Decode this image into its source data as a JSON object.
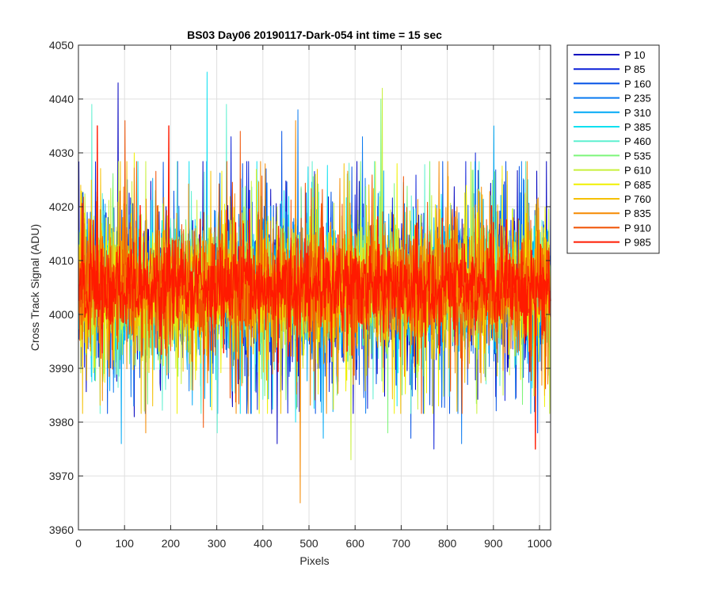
{
  "chart_data": {
    "type": "line",
    "title": "BS03 Day06 20190117-Dark-054 int time = 15 sec",
    "xlabel": "Pixels",
    "ylabel": "Cross Track Signal (ADU)",
    "xlim": [
      0,
      1024
    ],
    "ylim": [
      3960,
      4050
    ],
    "xticks": [
      0,
      100,
      200,
      300,
      400,
      500,
      600,
      700,
      800,
      900,
      1000
    ],
    "yticks": [
      3960,
      3970,
      3980,
      3990,
      4000,
      4010,
      4020,
      4030,
      4040,
      4050
    ],
    "grid": true,
    "legend_position": "outside-top-right",
    "n_points_per_series": 1024,
    "series": [
      {
        "name": "P 10",
        "color": "#0000bf",
        "mean": 4005,
        "spread": 9,
        "extremes": [
          [
            85,
            4043
          ],
          [
            120,
            3981
          ],
          [
            430,
            3976
          ]
        ]
      },
      {
        "name": "P 85",
        "color": "#0a1fd8",
        "mean": 4005,
        "spread": 9,
        "extremes": [
          [
            330,
            4033
          ],
          [
            770,
            3975
          ],
          [
            860,
            4030
          ]
        ]
      },
      {
        "name": "P 160",
        "color": "#0050e6",
        "mean": 4005,
        "spread": 9,
        "extremes": [
          [
            440,
            4034
          ],
          [
            720,
            3977
          ],
          [
            995,
            3978
          ]
        ]
      },
      {
        "name": "P 235",
        "color": "#0a7af0",
        "mean": 4005,
        "spread": 9,
        "extremes": [
          [
            475,
            4038
          ],
          [
            830,
            3976
          ],
          [
            615,
            4033
          ]
        ]
      },
      {
        "name": "P 310",
        "color": "#00a8f5",
        "mean": 4005,
        "spread": 9,
        "extremes": [
          [
            92,
            3976
          ],
          [
            900,
            4035
          ],
          [
            530,
            3977
          ]
        ]
      },
      {
        "name": "P 385",
        "color": "#0fe0f0",
        "mean": 4005,
        "spread": 9,
        "extremes": [
          [
            278,
            4045
          ],
          [
            470,
            3980
          ],
          [
            690,
            3983
          ]
        ]
      },
      {
        "name": "P 460",
        "color": "#5ef0d0",
        "mean": 4005,
        "spread": 9,
        "extremes": [
          [
            320,
            4039
          ],
          [
            300,
            3978
          ],
          [
            28,
            4039
          ]
        ]
      },
      {
        "name": "P 535",
        "color": "#7df57a",
        "mean": 4005,
        "spread": 9,
        "extremes": [
          [
            655,
            4040
          ],
          [
            670,
            3978
          ],
          [
            560,
            3985
          ]
        ]
      },
      {
        "name": "P 610",
        "color": "#c8f03c",
        "mean": 4005,
        "spread": 9,
        "extremes": [
          [
            658,
            4042
          ],
          [
            590,
            3973
          ],
          [
            920,
            3985
          ]
        ]
      },
      {
        "name": "P 685",
        "color": "#f0f000",
        "mean": 4005,
        "spread": 9,
        "extremes": [
          [
            690,
            4028
          ],
          [
            780,
            3983
          ],
          [
            120,
            4030
          ]
        ]
      },
      {
        "name": "P 760",
        "color": "#f5c000",
        "mean": 4005,
        "spread": 9,
        "extremes": [
          [
            160,
            3983
          ],
          [
            575,
            4028
          ],
          [
            820,
            3982
          ]
        ]
      },
      {
        "name": "P 835",
        "color": "#f58a00",
        "mean": 4005,
        "spread": 9,
        "extremes": [
          [
            480,
            3965
          ],
          [
            470,
            4036
          ],
          [
            145,
            3978
          ]
        ]
      },
      {
        "name": "P 910",
        "color": "#f05000",
        "mean": 4005,
        "spread": 9,
        "extremes": [
          [
            100,
            4036
          ],
          [
            270,
            3979
          ],
          [
            350,
            4034
          ]
        ]
      },
      {
        "name": "P 985",
        "color": "#ff1a00",
        "mean": 4005,
        "spread": 6,
        "extremes": [
          [
            40,
            4035
          ],
          [
            195,
            4035
          ],
          [
            990,
            3975
          ]
        ]
      }
    ]
  }
}
